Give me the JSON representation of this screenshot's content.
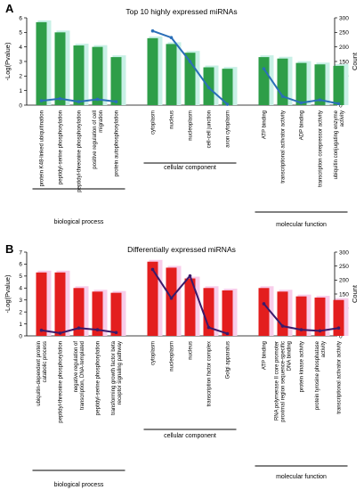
{
  "chart_data": [
    {
      "type": "bar",
      "panel": "A",
      "title": "Top 10 highly expressed miRNAs",
      "ylabel": "-Log(Pvalue)",
      "y2label": "Count",
      "ylim": [
        0,
        6
      ],
      "y2lim": [
        0,
        300
      ],
      "yticks": [
        "0",
        "1",
        "2",
        "3",
        "4",
        "5",
        "6"
      ],
      "y2ticks": [
        "0",
        "50",
        "100",
        "150",
        "200",
        "250",
        "300"
      ],
      "bar_color": "#2e9e48",
      "shadow_color": "#c8f0e6",
      "line_color": "#2a6fb8",
      "groups": [
        {
          "name": "biological process",
          "categories": [
            "protein K48-linked ubiquitination",
            "peptidyl-serine phosphorylation",
            "peptidyl-threonine phosphorylation",
            "positive regulation of cell migration",
            "protein autophosphorylation"
          ],
          "values": [
            5.7,
            5.0,
            4.1,
            4.0,
            3.3
          ],
          "counts": [
            15,
            22,
            12,
            20,
            12
          ]
        },
        {
          "name": "cellular component",
          "categories": [
            "cytoplasm",
            "nucleus",
            "nucleoplasm",
            "cell-cell junction",
            "axon cytoplasm"
          ],
          "values": [
            4.6,
            4.2,
            3.6,
            2.6,
            2.5
          ],
          "counts": [
            255,
            232,
            150,
            60,
            3
          ]
        },
        {
          "name": "molecular function",
          "categories": [
            "ATP binding",
            "transcriptional activator activity",
            "ADP binding",
            "transcription corepressor activity",
            "ubiquitin conjugating enzyme activity"
          ],
          "values": [
            3.3,
            3.2,
            2.9,
            2.8,
            2.7
          ],
          "counts": [
            125,
            30,
            8,
            18,
            5
          ]
        }
      ]
    },
    {
      "type": "bar",
      "panel": "B",
      "title": "Differentially expressed miRNAs",
      "ylabel": "-Log(Pvalue)",
      "y2label": "Count",
      "ylim": [
        0,
        7
      ],
      "y2lim": [
        0,
        300
      ],
      "yticks": [
        "0",
        "1",
        "2",
        "3",
        "4",
        "5",
        "6",
        "7"
      ],
      "y2ticks": [
        "0",
        "50",
        "100",
        "150",
        "200",
        "250",
        "300"
      ],
      "bar_color": "#e31e1e",
      "shadow_color": "#f8cdea",
      "line_color": "#3a1a6a",
      "groups": [
        {
          "name": "biological process",
          "categories": [
            "ubiquitin-dependent protein catabolic process",
            "peptidyl-threonine phosphorylation",
            "negative regulation of transcription, DNA-templated",
            "peptidyl-serine phosphorylation",
            "transforming growth factor beta receptor signaling pathway"
          ],
          "values": [
            5.3,
            5.3,
            4.0,
            3.7,
            3.6
          ],
          "counts": [
            20,
            10,
            28,
            22,
            12
          ]
        },
        {
          "name": "cellular component",
          "categories": [
            "cytoplasm",
            "nucleoplasm",
            "nucleus",
            "transcription factor complex",
            "Golgi apparatus"
          ],
          "values": [
            6.2,
            5.7,
            4.8,
            4.0,
            3.8
          ],
          "counts": [
            238,
            135,
            215,
            30,
            8
          ]
        },
        {
          "name": "molecular function",
          "categories": [
            "ATP binding",
            "RNA polymerase II core promoter proximal region sequence-specific DNA binding",
            "protein kinase activity",
            "protein tyrosine phosphatase activity",
            "transcriptional activator activity"
          ],
          "values": [
            4.0,
            3.7,
            3.3,
            3.2,
            3.0
          ],
          "counts": [
            115,
            35,
            22,
            18,
            28
          ]
        }
      ]
    }
  ]
}
